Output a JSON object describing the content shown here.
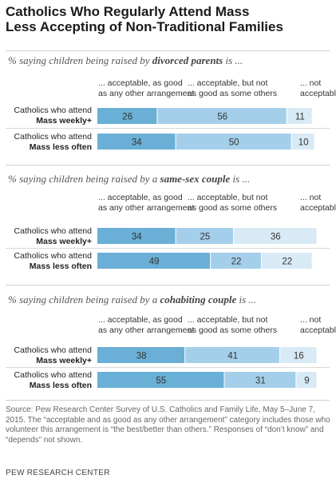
{
  "title_line1": "Catholics Who Regularly Attend Mass",
  "title_line2": "Less Accepting of Non-Traditional Families",
  "colors": {
    "acceptable_good": "#6aafd6",
    "acceptable_not_as_good": "#a4cfea",
    "not_acceptable": "#d8eaf6",
    "bar_text": "#333333"
  },
  "column_headers": {
    "acceptable_good": "... acceptable, as good\nas any other arrangement",
    "acceptable_not_as_good": "... acceptable, but not\nas good as some others",
    "not_acceptable": "... not\nacceptable"
  },
  "row_labels": [
    {
      "line1": "Catholics who attend",
      "line2": "Mass weekly+"
    },
    {
      "line1": "Catholics who attend",
      "line2": "Mass less often"
    }
  ],
  "chart_data": [
    {
      "type": "bar",
      "stacked": true,
      "orientation": "horizontal",
      "question_prefix": "% saying children being raised by ",
      "question_emph": "divorced parents",
      "question_suffix": " is ...",
      "categories": [
        "Catholics who attend Mass weekly+",
        "Catholics who attend Mass less often"
      ],
      "series": [
        {
          "name": "... acceptable, as good as any other arrangement",
          "values": [
            26,
            34
          ]
        },
        {
          "name": "... acceptable, but not as good as some others",
          "values": [
            56,
            50
          ]
        },
        {
          "name": "... not acceptable",
          "values": [
            11,
            10
          ]
        }
      ]
    },
    {
      "type": "bar",
      "stacked": true,
      "orientation": "horizontal",
      "question_prefix": "% saying children being raised by a ",
      "question_emph": "same-sex couple",
      "question_suffix": " is ...",
      "categories": [
        "Catholics who attend Mass weekly+",
        "Catholics who attend Mass less often"
      ],
      "series": [
        {
          "name": "... acceptable, as good as any other arrangement",
          "values": [
            34,
            49
          ]
        },
        {
          "name": "... acceptable, but not as good as some others",
          "values": [
            25,
            22
          ]
        },
        {
          "name": "... not acceptable",
          "values": [
            36,
            22
          ]
        }
      ]
    },
    {
      "type": "bar",
      "stacked": true,
      "orientation": "horizontal",
      "question_prefix": "% saying children being raised by a ",
      "question_emph": "cohabiting couple",
      "question_suffix": " is ...",
      "categories": [
        "Catholics who attend Mass weekly+",
        "Catholics who attend Mass less often"
      ],
      "series": [
        {
          "name": "... acceptable, as good as any other arrangement",
          "values": [
            38,
            55
          ]
        },
        {
          "name": "... acceptable, but not as good as some others",
          "values": [
            41,
            31
          ]
        },
        {
          "name": "... not acceptable",
          "values": [
            16,
            9
          ]
        }
      ]
    }
  ],
  "footer": {
    "source": "Source: Pew Research Center Survey of U.S. Catholics and Family Life, May 5–June 7, 2015. The “acceptable and as good as any other arrangement” category includes those who volunteer this arrangement is “the best/better than others.” Responses of “don’t know” and “depends” not shown.",
    "credit": "PEW RESEARCH CENTER"
  }
}
